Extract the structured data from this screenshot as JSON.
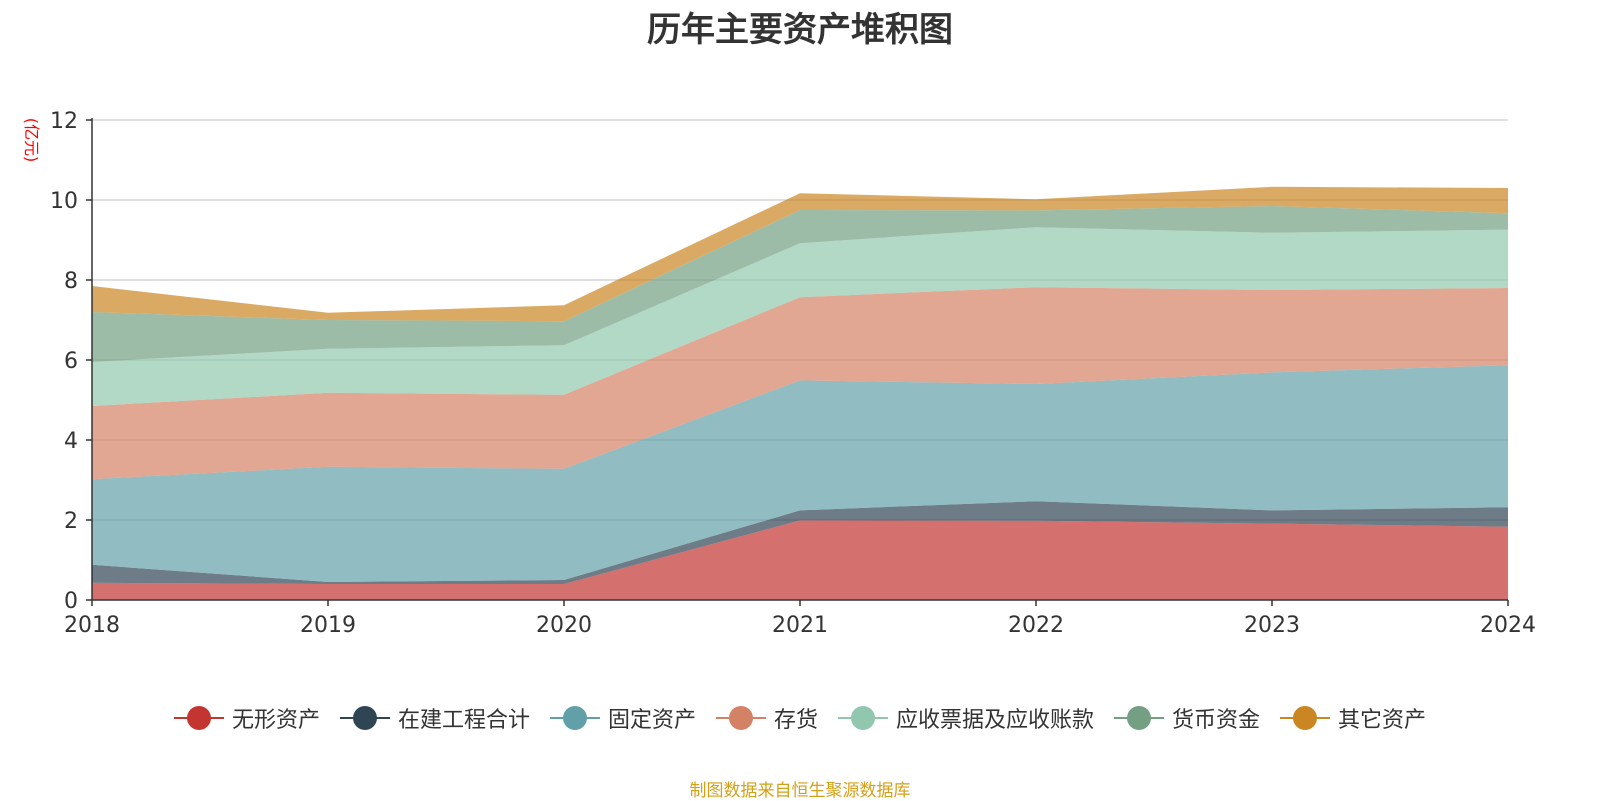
{
  "chart_data": {
    "type": "area",
    "stacked": true,
    "title": "历年主要资产堆积图",
    "ylabel": "(亿元)",
    "xlabel": "",
    "x": [
      "2018",
      "2019",
      "2020",
      "2021",
      "2022",
      "2023",
      "2024"
    ],
    "ylim": [
      0,
      12
    ],
    "yticks": [
      0,
      2,
      4,
      6,
      8,
      10,
      12
    ],
    "grid": true,
    "legend_position": "bottom",
    "series": [
      {
        "name": "无形资产",
        "color": "#c23531",
        "values": [
          0.43,
          0.4,
          0.4,
          1.99,
          1.98,
          1.91,
          1.83
        ]
      },
      {
        "name": "在建工程合计",
        "color": "#2f4554",
        "values": [
          0.45,
          0.05,
          0.1,
          0.25,
          0.49,
          0.33,
          0.49
        ]
      },
      {
        "name": "固定资产",
        "color": "#61a0a8",
        "values": [
          2.14,
          2.88,
          2.78,
          3.25,
          2.93,
          3.45,
          3.55
        ]
      },
      {
        "name": "存货",
        "color": "#d48265",
        "values": [
          1.83,
          1.85,
          1.85,
          2.08,
          2.42,
          2.06,
          1.93
        ]
      },
      {
        "name": "应收票据及应收账款",
        "color": "#91c7ae",
        "values": [
          1.1,
          1.1,
          1.24,
          1.35,
          1.5,
          1.43,
          1.46
        ]
      },
      {
        "name": "货币资金",
        "color": "#749f83",
        "values": [
          1.25,
          0.72,
          0.6,
          0.83,
          0.42,
          0.67,
          0.41
        ]
      },
      {
        "name": "其它资产",
        "color": "#ca8622",
        "values": [
          0.65,
          0.18,
          0.4,
          0.42,
          0.28,
          0.48,
          0.63
        ]
      }
    ]
  },
  "source_note": "制图数据来自恒生聚源数据库"
}
